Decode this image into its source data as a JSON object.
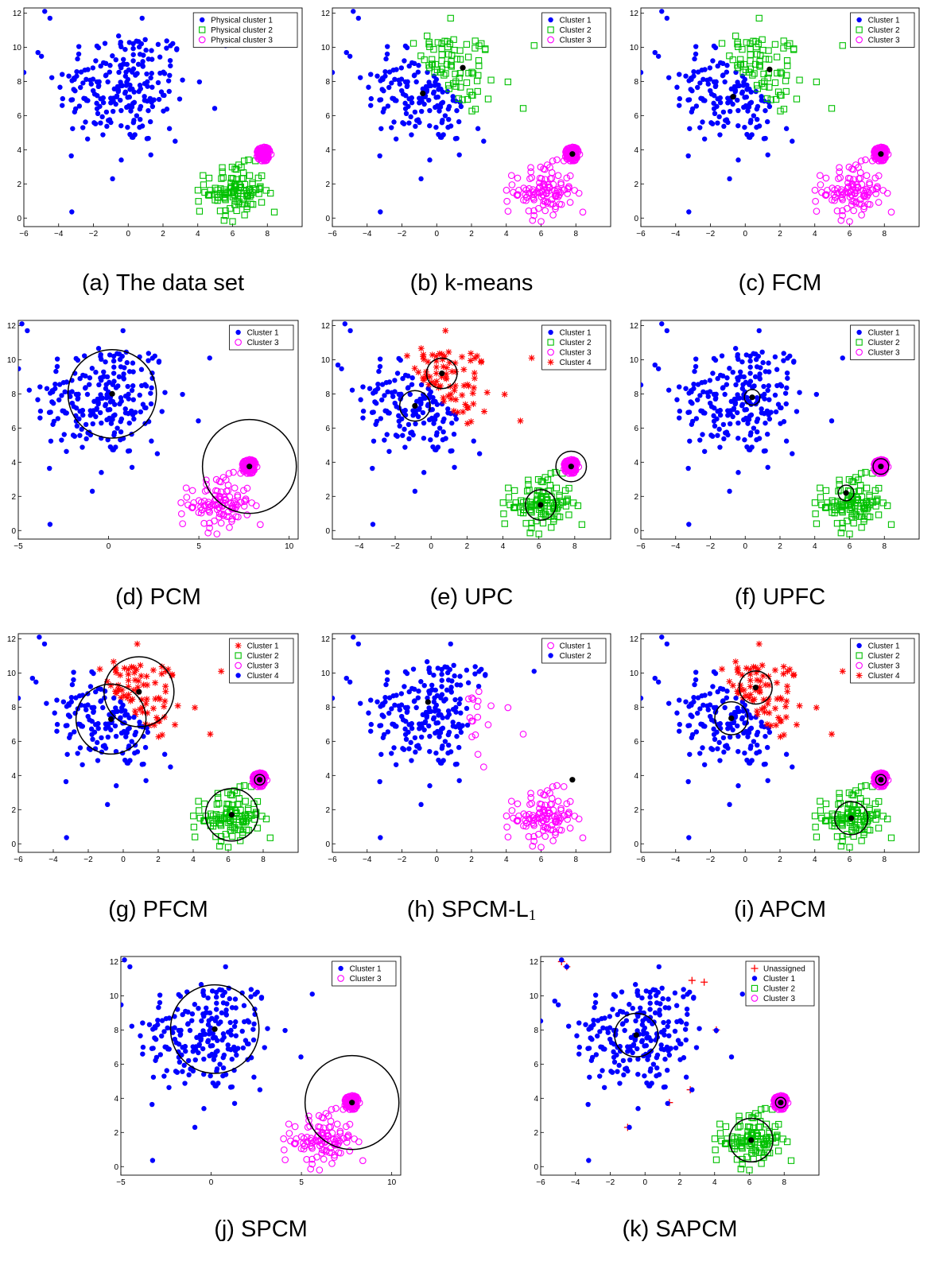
{
  "figure": {
    "captions": [
      "(a) The data set",
      "(b) k-means",
      "(c) FCM",
      "(d) PCM",
      "(e) UPC",
      "(f) UPFC",
      "(g) PFCM",
      "(h) SPCM-L",
      "(i) APCM",
      "(j) SPCM",
      "(k) SAPCM"
    ],
    "caption_subscripts": [
      "",
      "",
      "",
      "",
      "",
      "",
      "",
      "1",
      "",
      "",
      ""
    ]
  },
  "colors": {
    "blue": "#0000ff",
    "green": "#00c000",
    "magenta": "#ff00ff",
    "red": "#ff0000",
    "black": "#000000"
  },
  "chart_data": [
    {
      "id": "a",
      "type": "scatter",
      "title": "",
      "xlabel": "",
      "ylabel": "",
      "xlim": [
        -6,
        10
      ],
      "ylim": [
        -0.5,
        12.3
      ],
      "xticks": [
        -6,
        -4,
        -2,
        0,
        2,
        4,
        6,
        8
      ],
      "yticks": [
        0,
        2,
        4,
        6,
        8,
        10,
        12
      ],
      "legend": "top-right",
      "grid": false,
      "series": [
        {
          "name": "Physical cluster 1",
          "marker": "dot",
          "color": "blue",
          "group": "A",
          "group_labels": [
            "A",
            "B"
          ]
        },
        {
          "name": "Physical cluster 2",
          "marker": "square",
          "color": "green",
          "group": "B"
        },
        {
          "name": "Physical cluster 3",
          "marker": "circle",
          "color": "magenta",
          "group": "C"
        }
      ],
      "centers": [],
      "circles": []
    },
    {
      "id": "b",
      "type": "scatter",
      "title": "",
      "xlabel": "",
      "ylabel": "",
      "xlim": [
        -6,
        10
      ],
      "ylim": [
        -0.5,
        12.3
      ],
      "xticks": [
        -6,
        -4,
        -2,
        0,
        2,
        4,
        6,
        8
      ],
      "yticks": [
        0,
        2,
        4,
        6,
        8,
        10,
        12
      ],
      "legend": "top-right",
      "grid": false,
      "series": [
        {
          "name": "Cluster 1",
          "marker": "dot",
          "color": "blue",
          "group": "A1"
        },
        {
          "name": "Cluster 2",
          "marker": "square",
          "color": "green",
          "group": "A2"
        },
        {
          "name": "Cluster 3",
          "marker": "circle",
          "color": "magenta",
          "group": "BC"
        }
      ],
      "centers": [
        [
          -0.8,
          7.3
        ],
        [
          1.5,
          8.8
        ],
        [
          7.8,
          3.75
        ]
      ],
      "circles": []
    },
    {
      "id": "c",
      "type": "scatter",
      "title": "",
      "xlabel": "",
      "ylabel": "",
      "xlim": [
        -6,
        10
      ],
      "ylim": [
        -0.5,
        12.3
      ],
      "xticks": [
        -6,
        -4,
        -2,
        0,
        2,
        4,
        6,
        8
      ],
      "yticks": [
        0,
        2,
        4,
        6,
        8,
        10,
        12
      ],
      "legend": "top-right",
      "grid": false,
      "series": [
        {
          "name": "Cluster 1",
          "marker": "dot",
          "color": "blue",
          "group": "A1"
        },
        {
          "name": "Cluster 2",
          "marker": "square",
          "color": "green",
          "group": "A2"
        },
        {
          "name": "Cluster 3",
          "marker": "circle",
          "color": "magenta",
          "group": "BC"
        }
      ],
      "centers": [
        [
          -0.7,
          7.1
        ],
        [
          1.4,
          8.7
        ],
        [
          7.8,
          3.75
        ]
      ],
      "circles": []
    },
    {
      "id": "d",
      "type": "scatter",
      "title": "",
      "xlabel": "",
      "ylabel": "",
      "xlim": [
        -5,
        10.5
      ],
      "ylim": [
        -0.5,
        12.3
      ],
      "xticks": [
        -5,
        0,
        5,
        10
      ],
      "yticks": [
        0,
        2,
        4,
        6,
        8,
        10,
        12
      ],
      "legend": "top-right",
      "grid": false,
      "series": [
        {
          "name": "Cluster 1",
          "marker": "dot",
          "color": "blue",
          "group": "A"
        },
        {
          "name": "Cluster 3",
          "marker": "circle",
          "color": "magenta",
          "group": "BC"
        }
      ],
      "centers": [
        [
          0.2,
          8.0
        ],
        [
          7.8,
          3.75
        ]
      ],
      "circles": [
        [
          0.2,
          8.0,
          2.45
        ],
        [
          7.8,
          3.75,
          2.6
        ]
      ]
    },
    {
      "id": "e",
      "type": "scatter",
      "title": "",
      "xlabel": "",
      "ylabel": "",
      "xlim": [
        -5.5,
        10
      ],
      "ylim": [
        -0.5,
        12.3
      ],
      "xticks": [
        -4,
        -2,
        0,
        2,
        4,
        6,
        8
      ],
      "yticks": [
        0,
        2,
        4,
        6,
        8,
        10,
        12
      ],
      "legend": "top-right",
      "grid": false,
      "series": [
        {
          "name": "Cluster 1",
          "marker": "dot",
          "color": "blue",
          "group": "A1"
        },
        {
          "name": "Cluster 2",
          "marker": "square",
          "color": "green",
          "group": "B"
        },
        {
          "name": "Cluster 3",
          "marker": "circle",
          "color": "magenta",
          "group": "C"
        },
        {
          "name": "Cluster 4",
          "marker": "star",
          "color": "red",
          "group": "A2"
        }
      ],
      "centers": [
        [
          -0.9,
          7.3
        ],
        [
          0.6,
          9.2
        ],
        [
          6.1,
          1.5
        ],
        [
          7.8,
          3.75
        ]
      ],
      "circles": [
        [
          -0.9,
          7.3,
          0.85
        ],
        [
          0.6,
          9.2,
          0.85
        ],
        [
          6.1,
          1.5,
          0.85
        ],
        [
          7.8,
          3.75,
          0.85
        ]
      ]
    },
    {
      "id": "f",
      "type": "scatter",
      "title": "",
      "xlabel": "",
      "ylabel": "",
      "xlim": [
        -6,
        10
      ],
      "ylim": [
        -0.5,
        12.3
      ],
      "xticks": [
        -6,
        -4,
        -2,
        0,
        2,
        4,
        6,
        8
      ],
      "yticks": [
        0,
        2,
        4,
        6,
        8,
        10,
        12
      ],
      "legend": "top-right",
      "grid": false,
      "series": [
        {
          "name": "Cluster 1",
          "marker": "dot",
          "color": "blue",
          "group": "A"
        },
        {
          "name": "Cluster 2",
          "marker": "square",
          "color": "green",
          "group": "B"
        },
        {
          "name": "Cluster 3",
          "marker": "circle",
          "color": "magenta",
          "group": "C"
        }
      ],
      "centers": [
        [
          0.4,
          7.8
        ],
        [
          5.8,
          2.2
        ],
        [
          7.8,
          3.75
        ]
      ],
      "circles": [
        [
          0.4,
          7.8,
          0.45
        ],
        [
          5.8,
          2.2,
          0.45
        ],
        [
          7.8,
          3.75,
          0.45
        ]
      ]
    },
    {
      "id": "g",
      "type": "scatter",
      "title": "",
      "xlabel": "",
      "ylabel": "",
      "xlim": [
        -6,
        10
      ],
      "ylim": [
        -0.5,
        12.3
      ],
      "xticks": [
        -6,
        -4,
        -2,
        0,
        2,
        4,
        6,
        8
      ],
      "yticks": [
        0,
        2,
        4,
        6,
        8,
        10,
        12
      ],
      "legend": "top-right",
      "grid": false,
      "series": [
        {
          "name": "Cluster 1",
          "marker": "star",
          "color": "red",
          "group": "A2"
        },
        {
          "name": "Cluster 2",
          "marker": "square",
          "color": "green",
          "group": "B"
        },
        {
          "name": "Cluster 3",
          "marker": "circle",
          "color": "magenta",
          "group": "C"
        },
        {
          "name": "Cluster 4",
          "marker": "dot",
          "color": "blue",
          "group": "A1"
        }
      ],
      "centers": [
        [
          -0.7,
          7.3
        ],
        [
          0.9,
          8.9
        ],
        [
          6.2,
          1.7
        ],
        [
          7.8,
          3.75
        ]
      ],
      "circles": [
        [
          -0.7,
          7.3,
          2.0
        ],
        [
          0.9,
          8.9,
          2.0
        ],
        [
          6.2,
          1.7,
          1.5
        ],
        [
          7.8,
          3.75,
          0.3
        ]
      ]
    },
    {
      "id": "h",
      "type": "scatter",
      "title": "",
      "xlabel": "",
      "ylabel": "",
      "xlim": [
        -6,
        10
      ],
      "ylim": [
        -0.5,
        12.3
      ],
      "xticks": [
        -6,
        -4,
        -2,
        0,
        2,
        4,
        6,
        8
      ],
      "yticks": [
        0,
        2,
        4,
        6,
        8,
        10,
        12
      ],
      "legend": "top-right",
      "grid": false,
      "series": [
        {
          "name": "Cluster 1",
          "marker": "circle",
          "color": "magenta",
          "group": "H1"
        },
        {
          "name": "Cluster 2",
          "marker": "dot",
          "color": "blue",
          "group": "H2"
        }
      ],
      "centers": [
        [
          -0.5,
          8.3
        ],
        [
          7.8,
          3.75
        ]
      ],
      "circles": []
    },
    {
      "id": "i",
      "type": "scatter",
      "title": "",
      "xlabel": "",
      "ylabel": "",
      "xlim": [
        -6,
        10
      ],
      "ylim": [
        -0.5,
        12.3
      ],
      "xticks": [
        -6,
        -4,
        -2,
        0,
        2,
        4,
        6,
        8
      ],
      "yticks": [
        0,
        2,
        4,
        6,
        8,
        10,
        12
      ],
      "legend": "top-right",
      "grid": false,
      "series": [
        {
          "name": "Cluster 1",
          "marker": "dot",
          "color": "blue",
          "group": "A1"
        },
        {
          "name": "Cluster 2",
          "marker": "square",
          "color": "green",
          "group": "B"
        },
        {
          "name": "Cluster 3",
          "marker": "circle",
          "color": "magenta",
          "group": "C"
        },
        {
          "name": "Cluster 4",
          "marker": "star",
          "color": "red",
          "group": "A2"
        }
      ],
      "centers": [
        [
          -0.8,
          7.35
        ],
        [
          0.6,
          9.15
        ],
        [
          6.1,
          1.5
        ],
        [
          7.8,
          3.75
        ]
      ],
      "circles": [
        [
          -0.8,
          7.35,
          0.95
        ],
        [
          0.6,
          9.15,
          0.95
        ],
        [
          6.1,
          1.5,
          0.95
        ],
        [
          7.8,
          3.75,
          0.3
        ]
      ]
    },
    {
      "id": "j",
      "type": "scatter",
      "title": "",
      "xlabel": "",
      "ylabel": "",
      "xlim": [
        -5,
        10.5
      ],
      "ylim": [
        -0.5,
        12.3
      ],
      "xticks": [
        -5,
        0,
        5,
        10
      ],
      "yticks": [
        0,
        2,
        4,
        6,
        8,
        10,
        12
      ],
      "legend": "top-right",
      "grid": false,
      "series": [
        {
          "name": "Cluster 1",
          "marker": "dot",
          "color": "blue",
          "group": "A"
        },
        {
          "name": "Cluster 3",
          "marker": "circle",
          "color": "magenta",
          "group": "BC"
        }
      ],
      "centers": [
        [
          0.2,
          8.05
        ],
        [
          7.8,
          3.75
        ]
      ],
      "circles": [
        [
          0.2,
          8.05,
          2.45
        ],
        [
          7.8,
          3.75,
          2.6
        ]
      ]
    },
    {
      "id": "k",
      "type": "scatter",
      "title": "",
      "xlabel": "",
      "ylabel": "",
      "xlim": [
        -6,
        10
      ],
      "ylim": [
        -0.5,
        12.3
      ],
      "xticks": [
        -6,
        -4,
        -2,
        0,
        2,
        4,
        6,
        8
      ],
      "yticks": [
        0,
        2,
        4,
        6,
        8,
        10,
        12
      ],
      "legend": "top-right",
      "grid": false,
      "series": [
        {
          "name": "Unassigned",
          "marker": "plus",
          "color": "red",
          "group": "U"
        },
        {
          "name": "Cluster 1",
          "marker": "dot",
          "color": "blue",
          "group": "A"
        },
        {
          "name": "Cluster 2",
          "marker": "square",
          "color": "green",
          "group": "B"
        },
        {
          "name": "Cluster 3",
          "marker": "circle",
          "color": "magenta",
          "group": "C"
        }
      ],
      "centers": [
        [
          -0.5,
          7.7
        ],
        [
          6.1,
          1.55
        ],
        [
          7.8,
          3.75
        ]
      ],
      "circles": [
        [
          -0.5,
          7.7,
          1.25
        ],
        [
          6.1,
          1.55,
          1.25
        ],
        [
          7.8,
          3.75,
          0.3
        ]
      ]
    }
  ]
}
